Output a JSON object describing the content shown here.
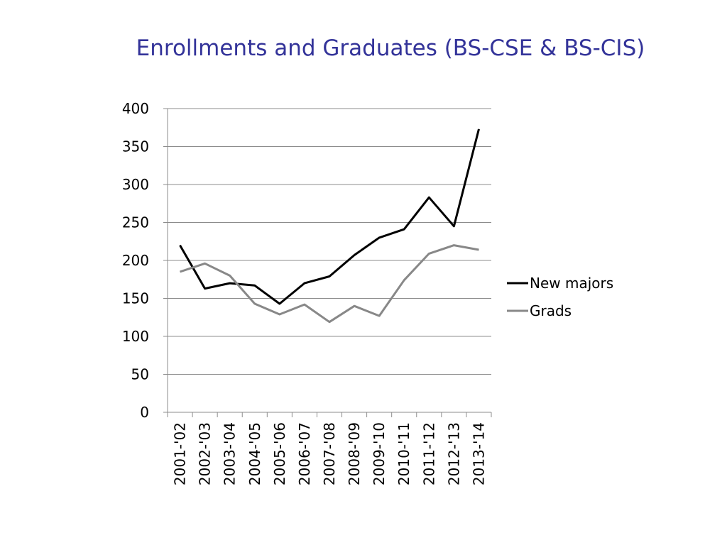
{
  "chart_data": {
    "type": "line",
    "title": "Enrollments and Graduates (BS-CSE & BS-CIS)",
    "xlabel": "",
    "ylabel": "",
    "ylim": [
      0,
      400
    ],
    "yticks": [
      "0",
      "50",
      "100",
      "150",
      "200",
      "250",
      "300",
      "350",
      "400"
    ],
    "categories": [
      "2001-'02",
      "2002-'03",
      "2003-'04",
      "2004-'05",
      "2005-'06",
      "2006-'07",
      "2007-'08",
      "2008-'09",
      "2009-'10",
      "2010-'11",
      "2011-'12",
      "2012-'13",
      "2013-'14"
    ],
    "series": [
      {
        "name": "New majors",
        "color": "#000000",
        "values": [
          220,
          163,
          170,
          167,
          143,
          170,
          179,
          207,
          230,
          241,
          283,
          245,
          373
        ]
      },
      {
        "name": "Grads",
        "color": "#888888",
        "values": [
          185,
          196,
          180,
          143,
          129,
          142,
          119,
          140,
          127,
          174,
          209,
          220,
          214
        ]
      }
    ],
    "grid": true,
    "legend": "right"
  }
}
